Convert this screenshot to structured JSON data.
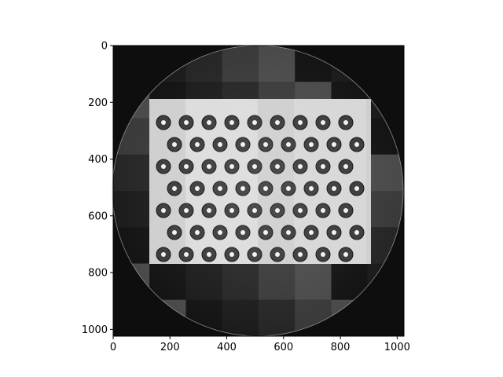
{
  "figure": {
    "type": "image",
    "description_kind": "grayscale tomographic reconstruction inside a circular field of view",
    "colormap": "gray",
    "x_axis": {
      "ticks": [
        0,
        200,
        400,
        600,
        800,
        1000
      ],
      "range": [
        0,
        1024
      ]
    },
    "y_axis": {
      "ticks": [
        0,
        200,
        400,
        600,
        800,
        1000
      ],
      "range": [
        0,
        1024
      ],
      "inverted": true
    }
  },
  "colors": {
    "background": "#ffffff",
    "image_dark": "#0e0e0e",
    "image_light": "#dcdcdc",
    "axes": "#000000"
  }
}
